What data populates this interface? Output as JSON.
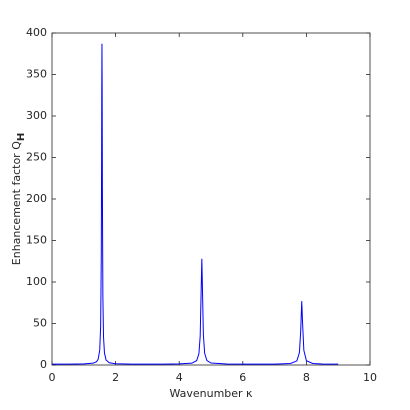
{
  "chart_data": {
    "type": "line",
    "xlabel": "Wavenumber κ",
    "ylabel": "Enhancement factor Q",
    "ylabel_subscript": "H",
    "x": [
      0,
      0.5,
      1.0,
      1.3,
      1.4,
      1.45,
      1.5,
      1.53,
      1.55,
      1.56,
      1.565,
      1.571,
      1.577,
      1.585,
      1.6,
      1.62,
      1.65,
      1.7,
      1.8,
      2.0,
      2.5,
      3.0,
      3.5,
      4.0,
      4.4,
      4.55,
      4.62,
      4.66,
      4.69,
      4.712,
      4.73,
      4.76,
      4.8,
      4.87,
      5.0,
      5.5,
      6.0,
      6.5,
      7.0,
      7.5,
      7.7,
      7.78,
      7.82,
      7.854,
      7.88,
      7.92,
      8.0,
      8.2,
      8.5,
      9.0
    ],
    "series": [
      {
        "color": "#0000ff",
        "values": [
          1.0,
          1.1,
          1.3,
          2.2,
          4.0,
          6.8,
          17.5,
          46.6,
          131,
          252,
          334,
          387,
          334,
          207,
          82,
          34,
          14.4,
          6.1,
          2.7,
          1.5,
          1.1,
          1.1,
          1.1,
          1.3,
          2.2,
          5.3,
          13.7,
          34.6,
          89,
          128,
          94,
          36.7,
          14.2,
          5.4,
          2.4,
          1.2,
          1.1,
          1.1,
          1.1,
          1.8,
          4.9,
          14.9,
          40,
          77,
          50,
          17.7,
          5.1,
          1.8,
          1.2,
          1.1
        ]
      }
    ],
    "xlim": [
      0,
      10
    ],
    "xticks": [
      0,
      2,
      4,
      6,
      8,
      10
    ],
    "ylim": [
      0,
      400
    ],
    "yticks": [
      0,
      50,
      100,
      150,
      200,
      250,
      300,
      350,
      400
    ],
    "grid": false
  }
}
